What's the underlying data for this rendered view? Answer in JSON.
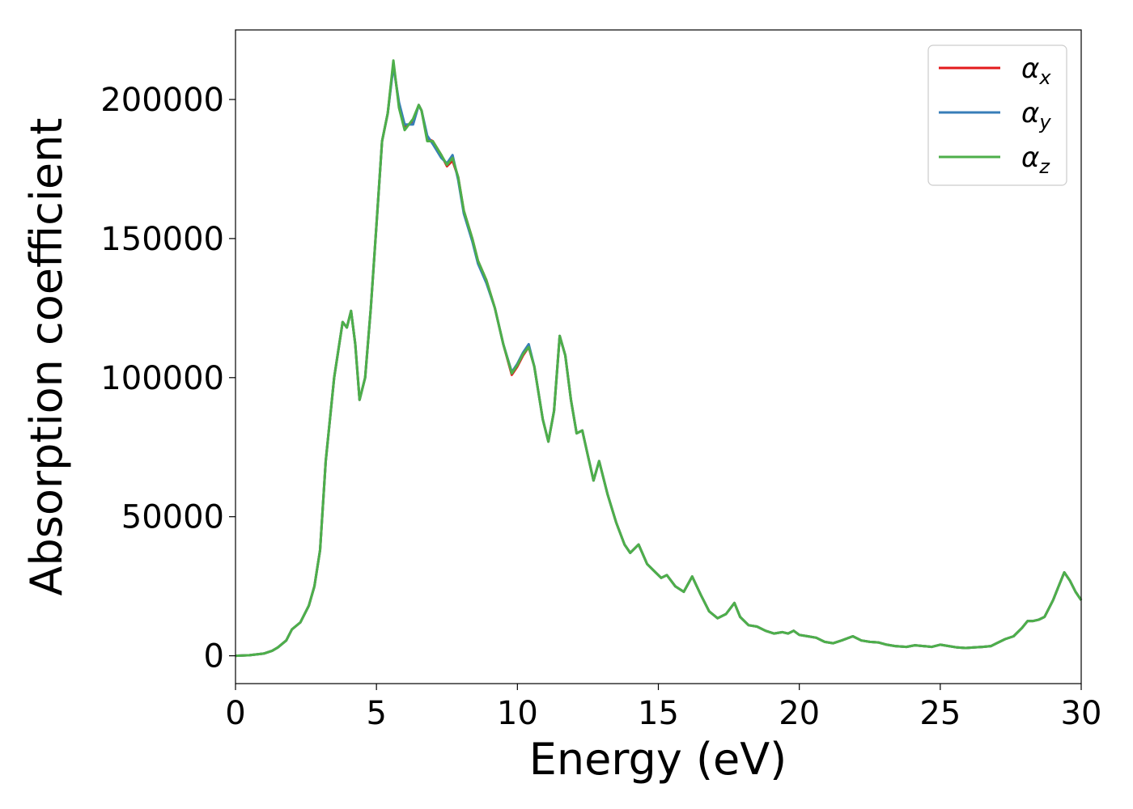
{
  "chart_data": {
    "type": "line",
    "title": "",
    "xlabel": "Energy (eV)",
    "ylabel": "Absorption coefficient",
    "xlim": [
      0,
      30
    ],
    "ylim": [
      -10000,
      225000
    ],
    "xticks": [
      0,
      5,
      10,
      15,
      20,
      25,
      30
    ],
    "yticks": [
      0,
      50000,
      100000,
      150000,
      200000
    ],
    "grid": false,
    "legend_position": "top-right",
    "x": [
      0,
      0.5,
      1.0,
      1.3,
      1.5,
      1.8,
      2.0,
      2.3,
      2.6,
      2.8,
      3.0,
      3.2,
      3.5,
      3.8,
      3.95,
      4.1,
      4.25,
      4.4,
      4.6,
      4.8,
      5.0,
      5.2,
      5.4,
      5.6,
      5.8,
      6.0,
      6.3,
      6.5,
      6.6,
      6.8,
      7.0,
      7.3,
      7.5,
      7.7,
      7.9,
      8.1,
      8.4,
      8.6,
      8.9,
      9.2,
      9.5,
      9.8,
      10.0,
      10.2,
      10.4,
      10.6,
      10.9,
      11.1,
      11.3,
      11.5,
      11.7,
      11.9,
      12.1,
      12.3,
      12.5,
      12.7,
      12.9,
      13.2,
      13.5,
      13.8,
      14.0,
      14.3,
      14.6,
      14.9,
      15.1,
      15.3,
      15.6,
      15.9,
      16.2,
      16.5,
      16.8,
      17.1,
      17.4,
      17.7,
      17.9,
      18.2,
      18.5,
      18.8,
      19.1,
      19.4,
      19.6,
      19.8,
      20.0,
      20.3,
      20.6,
      20.9,
      21.2,
      21.5,
      21.9,
      22.2,
      22.5,
      22.8,
      23.1,
      23.4,
      23.8,
      24.1,
      24.4,
      24.7,
      25.0,
      25.3,
      25.6,
      25.9,
      26.2,
      26.5,
      26.8,
      27.0,
      27.3,
      27.6,
      27.9,
      28.1,
      28.3,
      28.5,
      28.7,
      29.0,
      29.2,
      29.4,
      29.6,
      29.8,
      30.0
    ],
    "series": [
      {
        "name": "α_x",
        "color": "#e31a1c",
        "values": [
          0,
          200,
          800,
          1800,
          3000,
          5500,
          9500,
          12000,
          18000,
          25000,
          38000,
          70000,
          100000,
          120000,
          118000,
          124000,
          112000,
          92000,
          100000,
          125000,
          155000,
          185000,
          195000,
          213000,
          198000,
          190000,
          192000,
          198000,
          196000,
          186000,
          185000,
          180000,
          176000,
          178000,
          172000,
          160000,
          150000,
          142000,
          135000,
          125000,
          112000,
          101000,
          104000,
          108000,
          111000,
          104000,
          85000,
          77000,
          88000,
          115000,
          108000,
          92000,
          80000,
          81000,
          72000,
          63000,
          70000,
          58000,
          48000,
          40000,
          37000,
          40000,
          33000,
          30000,
          28000,
          29000,
          25000,
          23000,
          28500,
          22000,
          16000,
          13500,
          15000,
          19000,
          14000,
          11000,
          10500,
          9000,
          8000,
          8500,
          8000,
          9000,
          7500,
          7000,
          6500,
          5000,
          4500,
          5500,
          7000,
          5500,
          5000,
          4800,
          4000,
          3500,
          3200,
          3800,
          3500,
          3200,
          4000,
          3500,
          3000,
          2800,
          3000,
          3200,
          3500,
          4500,
          6000,
          7000,
          10000,
          12500,
          12500,
          13000,
          14000,
          20000,
          25000,
          30000,
          27000,
          23000,
          20000
        ]
      },
      {
        "name": "α_y",
        "color": "#377eb8",
        "values": [
          0,
          200,
          800,
          1800,
          3000,
          5500,
          9500,
          12000,
          18000,
          25000,
          38000,
          70000,
          100000,
          120000,
          118000,
          124000,
          112000,
          92000,
          100000,
          125000,
          155000,
          185000,
          195000,
          212000,
          199000,
          191000,
          191000,
          198000,
          196000,
          187000,
          184000,
          179000,
          177000,
          180000,
          171000,
          159000,
          149000,
          141000,
          134000,
          125000,
          112000,
          102000,
          105000,
          109000,
          112000,
          104000,
          85000,
          77000,
          88000,
          115000,
          108000,
          92000,
          80000,
          81000,
          72000,
          63000,
          70000,
          58000,
          48000,
          40000,
          37000,
          40000,
          33000,
          30000,
          28000,
          29000,
          25000,
          23000,
          28500,
          22000,
          16000,
          13500,
          15000,
          19000,
          14000,
          11000,
          10500,
          9000,
          8000,
          8500,
          8000,
          9000,
          7500,
          7000,
          6500,
          5000,
          4500,
          5500,
          7000,
          5500,
          5000,
          4800,
          4000,
          3500,
          3200,
          3800,
          3500,
          3200,
          4000,
          3500,
          3000,
          2800,
          3000,
          3200,
          3500,
          4500,
          6000,
          7000,
          10000,
          12500,
          12500,
          13000,
          14000,
          20000,
          25000,
          30000,
          27000,
          23000,
          20000
        ]
      },
      {
        "name": "α_z",
        "color": "#4daf4a",
        "values": [
          0,
          200,
          800,
          1800,
          3000,
          5500,
          9500,
          12000,
          18000,
          25000,
          38000,
          70000,
          100000,
          120000,
          118000,
          124000,
          112000,
          92000,
          100000,
          125000,
          155000,
          185000,
          195000,
          214000,
          197000,
          189000,
          193000,
          198000,
          196000,
          185000,
          185000,
          180000,
          176500,
          179000,
          172000,
          160000,
          150000,
          142000,
          135000,
          125000,
          112000,
          101500,
          104500,
          108500,
          111000,
          104000,
          85000,
          77000,
          88000,
          115000,
          108000,
          92000,
          80000,
          81000,
          72000,
          63000,
          70000,
          58000,
          48000,
          40000,
          37000,
          40000,
          33000,
          30000,
          28000,
          29000,
          25000,
          23000,
          28500,
          22000,
          16000,
          13500,
          15000,
          19000,
          14000,
          11000,
          10500,
          9000,
          8000,
          8500,
          8000,
          9000,
          7500,
          7000,
          6500,
          5000,
          4500,
          5500,
          7000,
          5500,
          5000,
          4800,
          4000,
          3500,
          3200,
          3800,
          3500,
          3200,
          4000,
          3500,
          3000,
          2800,
          3000,
          3200,
          3500,
          4500,
          6000,
          7000,
          10000,
          12500,
          12500,
          13000,
          14000,
          20000,
          25000,
          30000,
          27000,
          23000,
          20000
        ]
      }
    ]
  },
  "legend": [
    {
      "symbol": "α",
      "sub": "x"
    },
    {
      "symbol": "α",
      "sub": "y"
    },
    {
      "symbol": "α",
      "sub": "z"
    }
  ]
}
